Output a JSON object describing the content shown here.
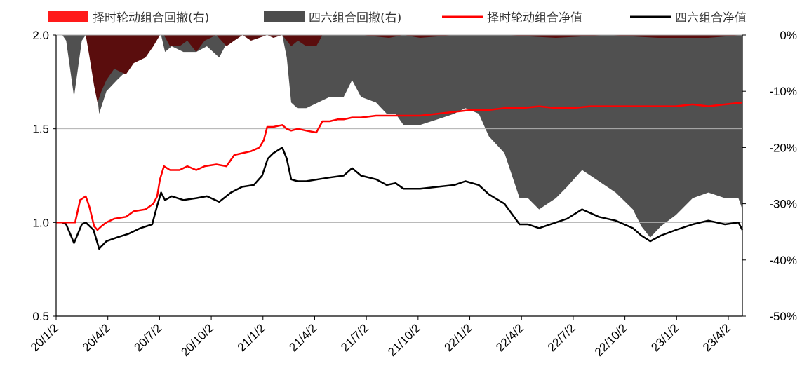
{
  "chart_data": {
    "type": "line",
    "legend": {
      "placement": "top",
      "items": [
        {
          "label": "择时轮动组合回撤(右)",
          "kind": "area",
          "color": "#ff1a1a"
        },
        {
          "label": "四六组合回撤(右)",
          "kind": "area",
          "color": "#4d4d4d"
        },
        {
          "label": "择时轮动组合净值",
          "kind": "line",
          "color": "#ff0000"
        },
        {
          "label": "四六组合净值",
          "kind": "line",
          "color": "#000000"
        }
      ]
    },
    "colors": {
      "timing_nav": "#ff0000",
      "sixty_nav": "#000000",
      "timing_drawdown": "#5a0d0d",
      "sixty_drawdown": "#505050",
      "gridline": "#b0b0b0",
      "axis": "#000000"
    },
    "x_ticks": [
      "20/1/2",
      "20/4/2",
      "20/7/2",
      "20/10/2",
      "21/1/2",
      "21/4/2",
      "21/7/2",
      "21/10/2",
      "22/1/2",
      "22/4/2",
      "22/7/2",
      "22/10/2",
      "23/1/2",
      "23/4/2"
    ],
    "x_range": [
      "2020-01-02",
      "2023-05-15"
    ],
    "y_left": {
      "ylim": [
        0.5,
        2.0
      ],
      "ticks": [
        "0.5",
        "1.0",
        "1.5",
        "2.0"
      ],
      "tick_values": [
        0.5,
        1.0,
        1.5,
        2.0
      ]
    },
    "y_right": {
      "ylim": [
        -50,
        0
      ],
      "ticks": [
        "0%",
        "-10%",
        "-20%",
        "-30%",
        "-40%",
        "-50%"
      ],
      "tick_values": [
        0,
        -10,
        -20,
        -30,
        -40,
        -50
      ]
    },
    "grid": {
      "horizontal": true,
      "vertical": false
    },
    "series": [
      {
        "name": "择时轮动组合净值",
        "axis": "left",
        "kind": "line",
        "x": [
          "2020-01-02",
          "2020-01-13",
          "2020-01-20",
          "2020-02-05",
          "2020-02-14",
          "2020-02-24",
          "2020-03-02",
          "2020-03-10",
          "2020-03-16",
          "2020-03-23",
          "2020-04-01",
          "2020-04-15",
          "2020-05-06",
          "2020-05-20",
          "2020-06-10",
          "2020-06-24",
          "2020-07-01",
          "2020-07-06",
          "2020-07-13",
          "2020-07-24",
          "2020-08-10",
          "2020-08-24",
          "2020-09-09",
          "2020-09-24",
          "2020-10-15",
          "2020-11-02",
          "2020-11-16",
          "2020-12-01",
          "2020-12-16",
          "2020-12-31",
          "2021-01-08",
          "2021-01-14",
          "2021-01-25",
          "2021-02-10",
          "2021-02-18",
          "2021-02-26",
          "2021-03-10",
          "2021-03-25",
          "2021-04-12",
          "2021-04-23",
          "2021-05-06",
          "2021-05-20",
          "2021-05-31",
          "2021-06-15",
          "2021-07-01",
          "2021-07-28",
          "2021-08-20",
          "2021-09-15",
          "2021-10-15",
          "2021-11-15",
          "2021-12-15",
          "2022-01-14",
          "2022-02-15",
          "2022-03-15",
          "2022-04-15",
          "2022-05-16",
          "2022-06-15",
          "2022-07-15",
          "2022-08-15",
          "2022-09-15",
          "2022-10-14",
          "2022-11-15",
          "2022-12-15",
          "2023-01-16",
          "2023-02-15",
          "2023-03-15",
          "2023-04-14",
          "2023-05-15"
        ],
        "values": [
          1.0,
          1.0,
          1.0,
          1.0,
          1.12,
          1.14,
          1.08,
          0.98,
          0.96,
          0.98,
          1.0,
          1.02,
          1.03,
          1.06,
          1.07,
          1.1,
          1.14,
          1.23,
          1.3,
          1.28,
          1.28,
          1.3,
          1.28,
          1.3,
          1.31,
          1.3,
          1.36,
          1.37,
          1.38,
          1.4,
          1.44,
          1.51,
          1.51,
          1.52,
          1.5,
          1.49,
          1.5,
          1.49,
          1.48,
          1.54,
          1.54,
          1.55,
          1.55,
          1.56,
          1.56,
          1.57,
          1.57,
          1.57,
          1.57,
          1.58,
          1.59,
          1.6,
          1.6,
          1.61,
          1.61,
          1.62,
          1.61,
          1.61,
          1.62,
          1.62,
          1.62,
          1.62,
          1.62,
          1.62,
          1.63,
          1.62,
          1.63,
          1.64
        ]
      },
      {
        "name": "四六组合净值",
        "axis": "left",
        "kind": "line",
        "x": [
          "2020-01-02",
          "2020-01-13",
          "2020-01-20",
          "2020-02-03",
          "2020-02-17",
          "2020-02-24",
          "2020-03-09",
          "2020-03-19",
          "2020-04-01",
          "2020-04-20",
          "2020-05-11",
          "2020-06-01",
          "2020-06-22",
          "2020-07-01",
          "2020-07-08",
          "2020-07-15",
          "2020-07-27",
          "2020-08-17",
          "2020-09-09",
          "2020-09-28",
          "2020-10-20",
          "2020-11-10",
          "2020-11-30",
          "2020-12-21",
          "2021-01-05",
          "2021-01-15",
          "2021-01-25",
          "2021-02-10",
          "2021-02-18",
          "2021-02-26",
          "2021-03-09",
          "2021-03-25",
          "2021-04-15",
          "2021-05-06",
          "2021-05-31",
          "2021-06-15",
          "2021-07-01",
          "2021-07-28",
          "2021-08-16",
          "2021-09-01",
          "2021-09-15",
          "2021-10-15",
          "2021-11-15",
          "2021-12-15",
          "2022-01-04",
          "2022-01-28",
          "2022-02-15",
          "2022-03-15",
          "2022-04-11",
          "2022-04-26",
          "2022-05-16",
          "2022-06-15",
          "2022-07-05",
          "2022-08-01",
          "2022-08-31",
          "2022-09-30",
          "2022-10-31",
          "2022-11-15",
          "2022-12-01",
          "2022-12-20",
          "2023-01-16",
          "2023-02-15",
          "2023-03-15",
          "2023-04-14",
          "2023-05-08",
          "2023-05-15"
        ],
        "values": [
          1.0,
          1.0,
          0.99,
          0.89,
          0.99,
          1.0,
          0.96,
          0.86,
          0.9,
          0.92,
          0.94,
          0.97,
          0.99,
          1.09,
          1.16,
          1.12,
          1.14,
          1.12,
          1.13,
          1.14,
          1.11,
          1.16,
          1.19,
          1.2,
          1.25,
          1.34,
          1.37,
          1.4,
          1.34,
          1.23,
          1.22,
          1.22,
          1.23,
          1.24,
          1.25,
          1.29,
          1.25,
          1.23,
          1.2,
          1.21,
          1.18,
          1.18,
          1.19,
          1.2,
          1.22,
          1.2,
          1.15,
          1.1,
          0.99,
          0.99,
          0.97,
          1.0,
          1.02,
          1.07,
          1.03,
          1.01,
          0.97,
          0.93,
          0.9,
          0.93,
          0.96,
          0.99,
          1.01,
          0.99,
          1.0,
          0.96
        ]
      },
      {
        "name": "择时轮动组合回撤(右)",
        "axis": "right",
        "kind": "area",
        "x": [
          "2020-01-02",
          "2020-02-10",
          "2020-02-24",
          "2020-03-02",
          "2020-03-10",
          "2020-03-16",
          "2020-03-23",
          "2020-04-01",
          "2020-04-15",
          "2020-05-06",
          "2020-05-20",
          "2020-06-10",
          "2020-06-24",
          "2020-07-06",
          "2020-07-13",
          "2020-07-24",
          "2020-08-10",
          "2020-08-24",
          "2020-09-09",
          "2020-09-24",
          "2020-10-15",
          "2020-11-02",
          "2020-11-16",
          "2020-12-01",
          "2020-12-16",
          "2021-01-14",
          "2021-01-25",
          "2021-02-10",
          "2021-02-18",
          "2021-02-26",
          "2021-03-10",
          "2021-03-25",
          "2021-04-12",
          "2021-04-23",
          "2021-05-06",
          "2021-05-31",
          "2021-06-15",
          "2021-07-01",
          "2021-08-20",
          "2021-09-15",
          "2021-10-15",
          "2021-12-15",
          "2022-03-15",
          "2022-06-15",
          "2022-09-15",
          "2022-12-15",
          "2023-03-15",
          "2023-05-15"
        ],
        "values": [
          0,
          0,
          0,
          -4,
          -9,
          -12,
          -10,
          -8,
          -6,
          -7,
          -5,
          -4,
          -2,
          0,
          0,
          -2,
          -2,
          -1,
          -3,
          -1,
          0,
          -2,
          -1,
          0,
          -1,
          0,
          -0.5,
          0,
          -1,
          -2,
          -1,
          -2,
          -2,
          0,
          0,
          0,
          0,
          0,
          -0.5,
          0,
          -0.5,
          0,
          0,
          -0.5,
          0,
          -0.5,
          -0.5,
          0
        ]
      },
      {
        "name": "四六组合回撤(右)",
        "axis": "right",
        "kind": "area",
        "x": [
          "2020-01-02",
          "2020-01-13",
          "2020-01-20",
          "2020-02-03",
          "2020-02-17",
          "2020-02-24",
          "2020-03-09",
          "2020-03-19",
          "2020-04-01",
          "2020-04-20",
          "2020-05-11",
          "2020-06-01",
          "2020-06-22",
          "2020-07-01",
          "2020-07-08",
          "2020-07-15",
          "2020-07-27",
          "2020-08-17",
          "2020-09-09",
          "2020-09-28",
          "2020-10-20",
          "2020-11-10",
          "2020-11-30",
          "2020-12-21",
          "2021-01-05",
          "2021-01-15",
          "2021-01-25",
          "2021-02-10",
          "2021-02-18",
          "2021-02-26",
          "2021-03-09",
          "2021-03-25",
          "2021-04-15",
          "2021-05-06",
          "2021-05-31",
          "2021-06-15",
          "2021-07-01",
          "2021-07-28",
          "2021-08-16",
          "2021-09-01",
          "2021-09-15",
          "2021-10-15",
          "2021-11-15",
          "2021-12-15",
          "2022-01-04",
          "2022-01-28",
          "2022-02-15",
          "2022-03-15",
          "2022-04-11",
          "2022-04-26",
          "2022-05-16",
          "2022-06-15",
          "2022-07-05",
          "2022-08-01",
          "2022-08-31",
          "2022-09-30",
          "2022-10-31",
          "2022-11-15",
          "2022-12-01",
          "2022-12-20",
          "2023-01-16",
          "2023-02-15",
          "2023-03-15",
          "2023-04-14",
          "2023-05-08",
          "2023-05-15"
        ],
        "values": [
          0,
          0,
          -1,
          -11,
          -1,
          0,
          -4,
          -14,
          -10,
          -8,
          -6,
          -3,
          -1,
          0,
          0,
          -3,
          -2,
          -3,
          -3,
          -2,
          -4,
          0,
          0,
          0,
          0,
          0,
          0,
          0,
          -4,
          -12,
          -13,
          -13,
          -12,
          -11,
          -11,
          -8,
          -11,
          -12,
          -14,
          -14,
          -16,
          -16,
          -15,
          -14,
          -13,
          -14,
          -18,
          -21,
          -29,
          -29,
          -31,
          -29,
          -27,
          -24,
          -26,
          -28,
          -31,
          -34,
          -36,
          -34,
          -32,
          -29,
          -28,
          -29,
          -29,
          -31
        ]
      }
    ]
  }
}
